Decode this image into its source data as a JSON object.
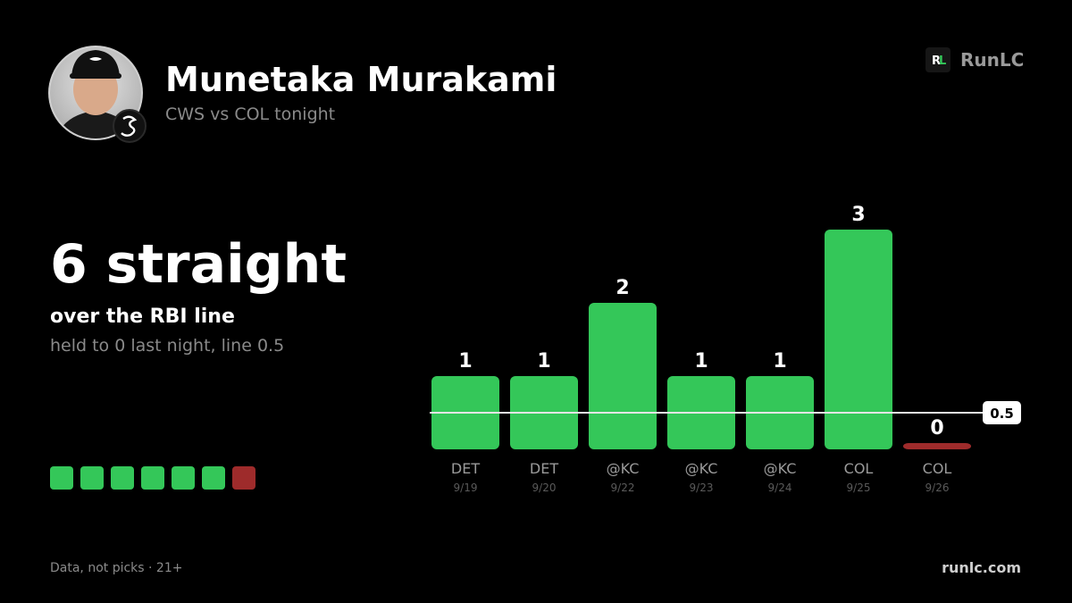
{
  "header": {
    "title": "Munetaka Murakami",
    "subtitle": "CWS vs COL tonight",
    "brand_mark": [
      "R",
      "L"
    ],
    "brand": "RunLC"
  },
  "headline": {
    "title": "6 straight",
    "subtitle": "over the RBI line",
    "note": "held to 0 last night, line 0.5"
  },
  "chart_data": {
    "type": "bar",
    "categories": [
      "DET",
      "DET",
      "@KC",
      "@KC",
      "@KC",
      "COL",
      "COL"
    ],
    "dates": [
      "9/19",
      "9/20",
      "9/22",
      "9/23",
      "9/24",
      "9/25",
      "9/26"
    ],
    "values": [
      1,
      1,
      2,
      1,
      1,
      3,
      0
    ],
    "ylim": [
      0,
      3
    ],
    "line": {
      "value": 0.5,
      "label": "0.5"
    },
    "color": "#34c759",
    "miss_color": "#9e2b2b"
  },
  "footer": {
    "left": "Data, not picks · 21+",
    "right": "runlc.com"
  }
}
